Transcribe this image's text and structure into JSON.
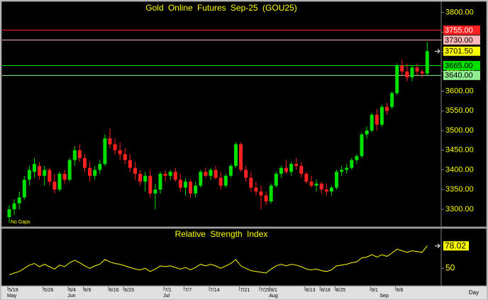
{
  "chart_data": [
    {
      "type": "candlestick",
      "title": "Gold Online Futures Sep-25 (GOU25)",
      "note": "No Gaps",
      "categories": [
        "5/19",
        null,
        null,
        null,
        null,
        null,
        null,
        "5/26",
        null,
        null,
        null,
        null,
        "6/4",
        null,
        null,
        "6/9",
        null,
        null,
        null,
        null,
        "6/16",
        null,
        null,
        "6/23",
        null,
        null,
        null,
        null,
        null,
        null,
        null,
        "7/1",
        null,
        null,
        null,
        "7/7",
        null,
        null,
        null,
        null,
        "7/14",
        null,
        null,
        null,
        null,
        null,
        "7/21",
        null,
        null,
        null,
        "7/29",
        null,
        "8/1",
        null,
        null,
        null,
        null,
        null,
        null,
        "8/13",
        null,
        null,
        "8/18",
        null,
        null,
        "8/25",
        null,
        null,
        null,
        null,
        null,
        null,
        "9/1",
        null,
        null,
        null,
        null,
        "9/8",
        null,
        null,
        null,
        null,
        null,
        null
      ],
      "months": [
        "May",
        null,
        null,
        null,
        null,
        null,
        null,
        null,
        null,
        null,
        null,
        null,
        "Jun",
        null,
        null,
        null,
        null,
        null,
        null,
        null,
        null,
        null,
        null,
        null,
        null,
        null,
        null,
        null,
        null,
        null,
        null,
        "Jul",
        null,
        null,
        null,
        null,
        null,
        null,
        null,
        null,
        null,
        null,
        null,
        null,
        null,
        null,
        null,
        null,
        null,
        null,
        null,
        null,
        "Aug",
        null,
        null,
        null,
        null,
        null,
        null,
        null,
        null,
        null,
        null,
        null,
        null,
        null,
        null,
        null,
        null,
        null,
        null,
        null,
        null,
        null,
        "Sep",
        null,
        null,
        null,
        null,
        null,
        null,
        null,
        null,
        null,
        null,
        null
      ],
      "open": [
        3280,
        3300,
        3315,
        3330,
        3375,
        3395,
        3410,
        3385,
        3400,
        3370,
        3350,
        3390,
        3375,
        3425,
        3450,
        3430,
        3405,
        3385,
        3400,
        3415,
        3480,
        3465,
        3450,
        3440,
        3425,
        3405,
        3390,
        3370,
        3385,
        3340,
        3350,
        3390,
        3385,
        3395,
        3375,
        3355,
        3370,
        3340,
        3360,
        3395,
        3385,
        3400,
        3380,
        3360,
        3385,
        3410,
        3465,
        3400,
        3380,
        3355,
        3345,
        3335,
        3320,
        3360,
        3390,
        3405,
        3395,
        3415,
        3410,
        3390,
        3370,
        3360,
        3365,
        3350,
        3345,
        3355,
        3395,
        3400,
        3405,
        3425,
        3435,
        3490,
        3500,
        3540,
        3515,
        3560,
        3560,
        3595,
        3665,
        3650,
        3635,
        3660,
        3650,
        3645
      ],
      "high": [
        3310,
        3325,
        3345,
        3385,
        3410,
        3430,
        3420,
        3410,
        3405,
        3390,
        3395,
        3400,
        3430,
        3460,
        3465,
        3440,
        3420,
        3410,
        3425,
        3490,
        3505,
        3480,
        3470,
        3455,
        3440,
        3420,
        3400,
        3395,
        3400,
        3365,
        3395,
        3400,
        3400,
        3405,
        3390,
        3380,
        3375,
        3370,
        3400,
        3405,
        3405,
        3410,
        3395,
        3390,
        3415,
        3470,
        3470,
        3410,
        3395,
        3370,
        3360,
        3345,
        3365,
        3395,
        3410,
        3425,
        3420,
        3430,
        3420,
        3395,
        3385,
        3375,
        3370,
        3365,
        3360,
        3400,
        3410,
        3415,
        3430,
        3440,
        3495,
        3510,
        3545,
        3555,
        3565,
        3570,
        3600,
        3670,
        3680,
        3670,
        3665,
        3670,
        3655,
        3725
      ],
      "low": [
        3265,
        3285,
        3300,
        3325,
        3360,
        3380,
        3375,
        3360,
        3360,
        3340,
        3345,
        3365,
        3370,
        3410,
        3420,
        3395,
        3370,
        3375,
        3390,
        3410,
        3455,
        3440,
        3425,
        3415,
        3395,
        3375,
        3360,
        3345,
        3330,
        3300,
        3340,
        3370,
        3375,
        3370,
        3345,
        3335,
        3330,
        3330,
        3355,
        3380,
        3375,
        3375,
        3350,
        3355,
        3380,
        3405,
        3395,
        3370,
        3345,
        3335,
        3300,
        3310,
        3315,
        3355,
        3380,
        3390,
        3385,
        3400,
        3380,
        3365,
        3355,
        3345,
        3340,
        3335,
        3335,
        3350,
        3385,
        3390,
        3400,
        3415,
        3430,
        3480,
        3495,
        3500,
        3510,
        3540,
        3555,
        3590,
        3640,
        3625,
        3625,
        3640,
        3635,
        3640
      ],
      "close": [
        3300,
        3315,
        3330,
        3375,
        3400,
        3415,
        3385,
        3400,
        3370,
        3350,
        3390,
        3375,
        3425,
        3450,
        3430,
        3405,
        3385,
        3400,
        3415,
        3480,
        3465,
        3450,
        3440,
        3425,
        3405,
        3390,
        3370,
        3385,
        3340,
        3350,
        3390,
        3385,
        3395,
        3375,
        3355,
        3370,
        3340,
        3360,
        3395,
        3385,
        3400,
        3380,
        3360,
        3385,
        3410,
        3465,
        3400,
        3380,
        3355,
        3345,
        3335,
        3320,
        3360,
        3390,
        3405,
        3395,
        3415,
        3410,
        3390,
        3370,
        3360,
        3365,
        3350,
        3345,
        3355,
        3395,
        3400,
        3405,
        3425,
        3435,
        3490,
        3500,
        3540,
        3515,
        3560,
        3550,
        3595,
        3665,
        3650,
        3635,
        3660,
        3650,
        3645,
        3701.5
      ],
      "up_color": "#00e000",
      "down_color": "#ff2020",
      "ylim": [
        3255,
        3828
      ],
      "yticks": [
        {
          "value": 3300,
          "label": "3300.00"
        },
        {
          "value": 3350,
          "label": "3350.00"
        },
        {
          "value": 3400,
          "label": "3400.00"
        },
        {
          "value": 3450,
          "label": "3450.00"
        },
        {
          "value": 3500,
          "label": "3500.00"
        },
        {
          "value": 3550,
          "label": "3550.00"
        },
        {
          "value": 3600,
          "label": "3600.00"
        },
        {
          "value": 3650,
          "label": "3650.00"
        },
        {
          "value": 3700,
          "label": "3700.00"
        },
        {
          "value": 3750,
          "label": "3750.00"
        },
        {
          "value": 3800,
          "label": "3800.00"
        }
      ],
      "levels": [
        {
          "value": 3755,
          "label": "3755.00",
          "color": "#ff2020",
          "text_color": "#ffffff"
        },
        {
          "value": 3730,
          "label": "3730.00",
          "color": "#ffb6b6",
          "text_color": "#000000"
        },
        {
          "value": 3665,
          "label": "3665.00",
          "color": "#00e000",
          "text_color": "#000000"
        },
        {
          "value": 3640,
          "label": "3640.00",
          "color": "#90ee90",
          "text_color": "#000000"
        }
      ],
      "last_price": {
        "value": 3701.5,
        "label": "3701.50",
        "color": "#ffff00"
      },
      "x_unit": "Day"
    },
    {
      "type": "line",
      "title": "Relative Strength Index",
      "color": "#ffff00",
      "values": [
        42,
        44,
        46,
        50,
        54,
        56,
        52,
        55,
        52,
        49,
        54,
        52,
        57,
        60,
        57,
        53,
        50,
        53,
        55,
        61,
        58,
        56,
        55,
        53,
        51,
        49,
        48,
        50,
        46,
        49,
        53,
        52,
        53,
        51,
        49,
        51,
        48,
        51,
        55,
        53,
        55,
        53,
        50,
        53,
        56,
        61,
        53,
        50,
        47,
        46,
        45,
        44,
        49,
        53,
        55,
        53,
        55,
        54,
        52,
        49,
        48,
        49,
        47,
        46,
        48,
        53,
        54,
        55,
        57,
        58,
        63,
        64,
        67,
        64,
        67,
        65,
        69,
        74,
        72,
        70,
        72,
        71,
        70,
        78.02
      ],
      "ylim": [
        28,
        100
      ],
      "yticks": [
        50
      ]
    }
  ]
}
